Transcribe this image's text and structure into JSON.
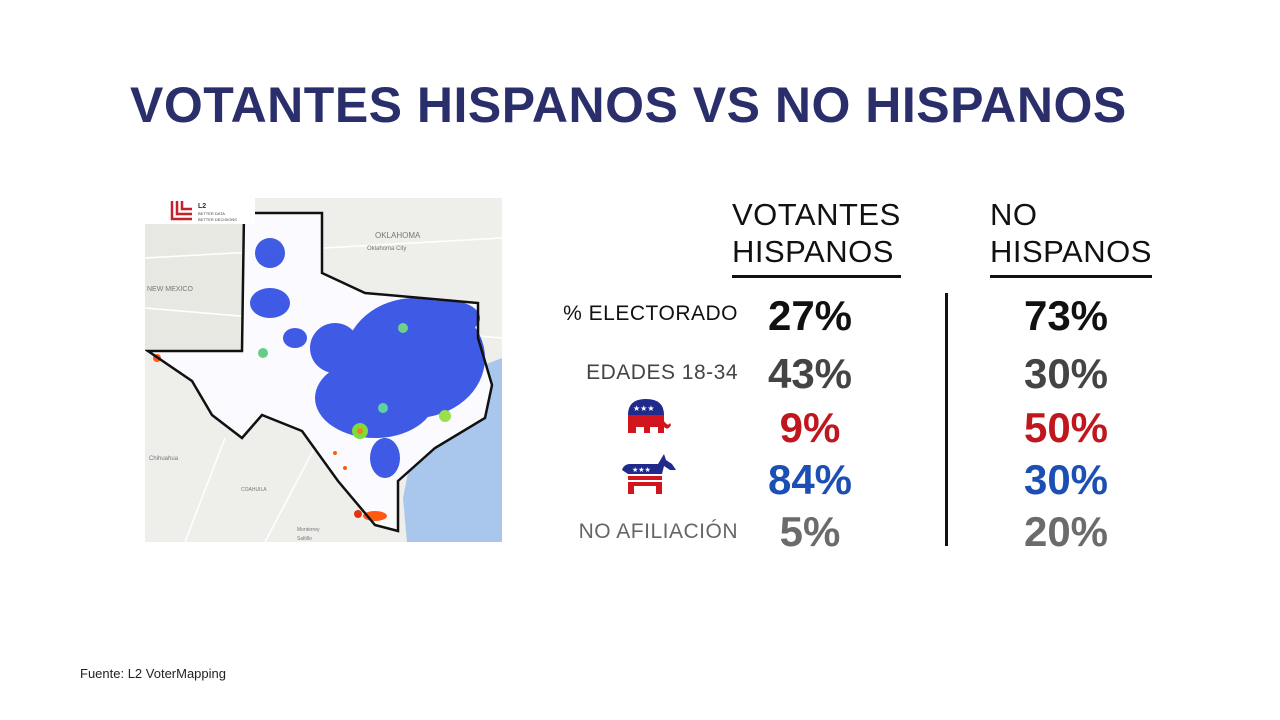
{
  "title": "VOTANTES HISPANOS VS NO HISPANOS",
  "map": {
    "logo_text": "L2",
    "logo_tagline": "BETTER DATA BETTER DECISIONS",
    "labels": [
      "OKLAHOMA",
      "Oklahoma City",
      "NEW MEXICO",
      "Chihuahua",
      "COAHUILA",
      "Monterrey",
      "Saltillo"
    ]
  },
  "columns": {
    "hispanos": [
      "VOTANTES",
      "HISPANOS"
    ],
    "no_hispanos": [
      "NO",
      "HISPANOS"
    ]
  },
  "rows": [
    {
      "label": "% ELECTORADO",
      "icon": null,
      "hispanos": "27%",
      "no_hispanos": "73%",
      "color": "#111111",
      "label_color": "#111111"
    },
    {
      "label": "EDADES 18-34",
      "icon": null,
      "hispanos": "43%",
      "no_hispanos": "30%",
      "color": "#444444",
      "label_color": "#444444"
    },
    {
      "label": "",
      "icon": "republican-elephant-icon",
      "hispanos": "9%",
      "no_hispanos": "50%",
      "color": "#c0161e"
    },
    {
      "label": "",
      "icon": "democrat-donkey-icon",
      "hispanos": "84%",
      "no_hispanos": "30%",
      "color": "#1c4fb5"
    },
    {
      "label": "NO AFILIACIÓN",
      "icon": null,
      "hispanos": "5%",
      "no_hispanos": "20%",
      "color": "#6b6b6b",
      "label_color": "#666666"
    }
  ],
  "source": "Fuente: L2 VoterMapping"
}
